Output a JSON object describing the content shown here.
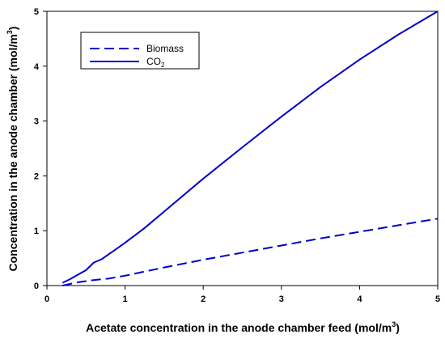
{
  "chart_data": {
    "type": "line",
    "xlabel": "Acetate concentration in the anode chamber feed (mol/m",
    "xlabel_sup": "3",
    "xlabel_end": ")",
    "ylabel": "Concentration in the anode chamber (mol/m",
    "ylabel_sup": "3",
    "ylabel_end": ")",
    "xlim": [
      0,
      5
    ],
    "ylim": [
      0,
      5
    ],
    "x_ticks": [
      0,
      1,
      2,
      3,
      4,
      5
    ],
    "y_ticks": [
      0,
      1,
      2,
      3,
      4,
      5
    ],
    "grid": false,
    "legend_position": "top-left",
    "series": [
      {
        "name": "Biomass",
        "style": "dashed",
        "color": "#0000cc",
        "x": [
          0.2,
          0.4,
          0.6,
          0.8,
          1.0,
          1.5,
          2.0,
          2.5,
          3.0,
          3.5,
          4.0,
          4.5,
          5.0
        ],
        "y": [
          0.0,
          0.06,
          0.1,
          0.13,
          0.18,
          0.33,
          0.47,
          0.6,
          0.73,
          0.86,
          0.98,
          1.1,
          1.22
        ]
      },
      {
        "name": "CO",
        "name_sub": "2",
        "style": "solid",
        "color": "#0000cc",
        "x": [
          0.2,
          0.3,
          0.4,
          0.5,
          0.6,
          0.7,
          0.8,
          0.9,
          1.0,
          1.25,
          1.5,
          2.0,
          2.5,
          3.0,
          3.5,
          4.0,
          4.5,
          5.0
        ],
        "y": [
          0.05,
          0.12,
          0.2,
          0.28,
          0.42,
          0.48,
          0.58,
          0.68,
          0.78,
          1.05,
          1.35,
          1.95,
          2.52,
          3.08,
          3.62,
          4.12,
          4.58,
          5.0
        ]
      }
    ]
  }
}
